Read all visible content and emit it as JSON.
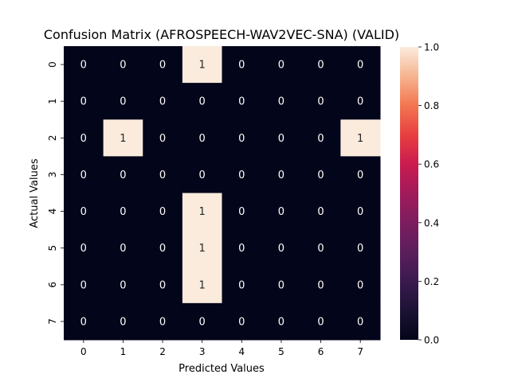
{
  "chart_data": {
    "type": "heatmap",
    "title": "Confusion Matrix (AFROSPEECH-WAV2VEC-SNA) (VALID)",
    "xlabel": "Predicted Values",
    "ylabel": "Actual Values",
    "x_categories": [
      "0",
      "1",
      "2",
      "3",
      "4",
      "5",
      "6",
      "7"
    ],
    "y_categories": [
      "0",
      "1",
      "2",
      "3",
      "4",
      "5",
      "6",
      "7"
    ],
    "values": [
      [
        0,
        0,
        0,
        1,
        0,
        0,
        0,
        0
      ],
      [
        0,
        0,
        0,
        0,
        0,
        0,
        0,
        0
      ],
      [
        0,
        1,
        0,
        0,
        0,
        0,
        0,
        1
      ],
      [
        0,
        0,
        0,
        0,
        0,
        0,
        0,
        0
      ],
      [
        0,
        0,
        0,
        1,
        0,
        0,
        0,
        0
      ],
      [
        0,
        0,
        0,
        1,
        0,
        0,
        0,
        0
      ],
      [
        0,
        0,
        0,
        1,
        0,
        0,
        0,
        0
      ],
      [
        0,
        0,
        0,
        0,
        0,
        0,
        0,
        0
      ]
    ],
    "colorbar": {
      "range": [
        0.0,
        1.0
      ],
      "ticks": [
        "0.0",
        "0.2",
        "0.4",
        "0.6",
        "0.8",
        "1.0"
      ],
      "colormap": "rocket",
      "low_color": "#03051a",
      "high_color": "#faebdd"
    },
    "annotations": true,
    "grid": false
  }
}
